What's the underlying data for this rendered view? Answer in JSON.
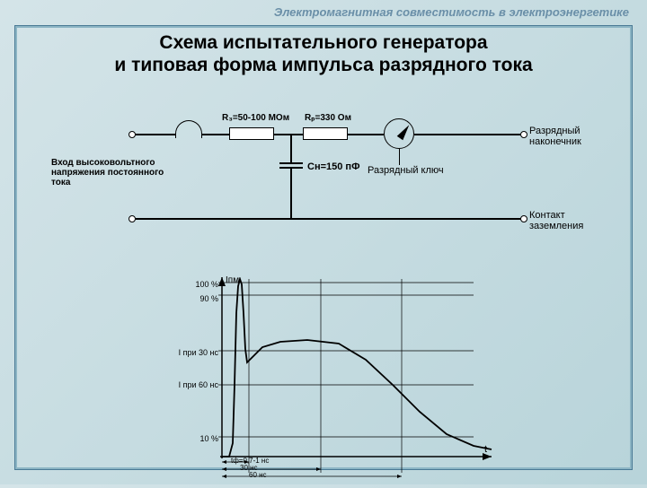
{
  "header": "Электромагнитная совместимость в электроэнергетике",
  "title_line1": "Схема испытательного генератора",
  "title_line2": "и типовая форма импульса разрядного тока",
  "circuit": {
    "type": "circuit-schematic",
    "r3_label": "R₃=50-100 МОм",
    "rp_label": "Rₚ=330 Ом",
    "input_label": "Вход высоковольтного\nнапряжения постоянного\nтока",
    "cap_label": "Cн=150 пФ",
    "switch_label": "Разрядный ключ",
    "output_top": "Разрядный\nнаконечник",
    "output_bottom": "Контакт\nзаземления",
    "line_color": "#000000",
    "line_width": 1.5
  },
  "waveform": {
    "type": "line",
    "title_y": "Iпм",
    "y_ticks": [
      "100 %",
      "90 %",
      "I\nпри 30 нс",
      "I\nпри 60 нс",
      "10 %"
    ],
    "y_positions_pct": [
      2,
      10,
      40,
      58,
      88
    ],
    "x_label_t": "t",
    "x_annotations": [
      "tф=0,7-1 нс",
      "30 нс",
      "60 нс"
    ],
    "x_ann_positions_pct": [
      12,
      32,
      55
    ],
    "points": [
      {
        "x": 0,
        "y": 200
      },
      {
        "x": 8,
        "y": 200
      },
      {
        "x": 12,
        "y": 185
      },
      {
        "x": 14,
        "y": 120
      },
      {
        "x": 16,
        "y": 40
      },
      {
        "x": 18,
        "y": 10
      },
      {
        "x": 20,
        "y": 2
      },
      {
        "x": 22,
        "y": 8
      },
      {
        "x": 24,
        "y": 40
      },
      {
        "x": 26,
        "y": 80
      },
      {
        "x": 28,
        "y": 95
      },
      {
        "x": 33,
        "y": 90
      },
      {
        "x": 45,
        "y": 78
      },
      {
        "x": 65,
        "y": 72
      },
      {
        "x": 95,
        "y": 70
      },
      {
        "x": 130,
        "y": 74
      },
      {
        "x": 160,
        "y": 92
      },
      {
        "x": 190,
        "y": 120
      },
      {
        "x": 220,
        "y": 150
      },
      {
        "x": 250,
        "y": 175
      },
      {
        "x": 280,
        "y": 188
      },
      {
        "x": 300,
        "y": 192
      }
    ],
    "grid_x_positions": [
      30,
      110,
      200
    ],
    "grid_y_heights": [
      6,
      20,
      82,
      120,
      178
    ],
    "xlim": [
      0,
      300
    ],
    "ylim": [
      0,
      200
    ],
    "line_color": "#000000",
    "line_width": 1.5,
    "grid_color": "#000000",
    "background_color": "transparent",
    "label_fontsize": 9
  }
}
